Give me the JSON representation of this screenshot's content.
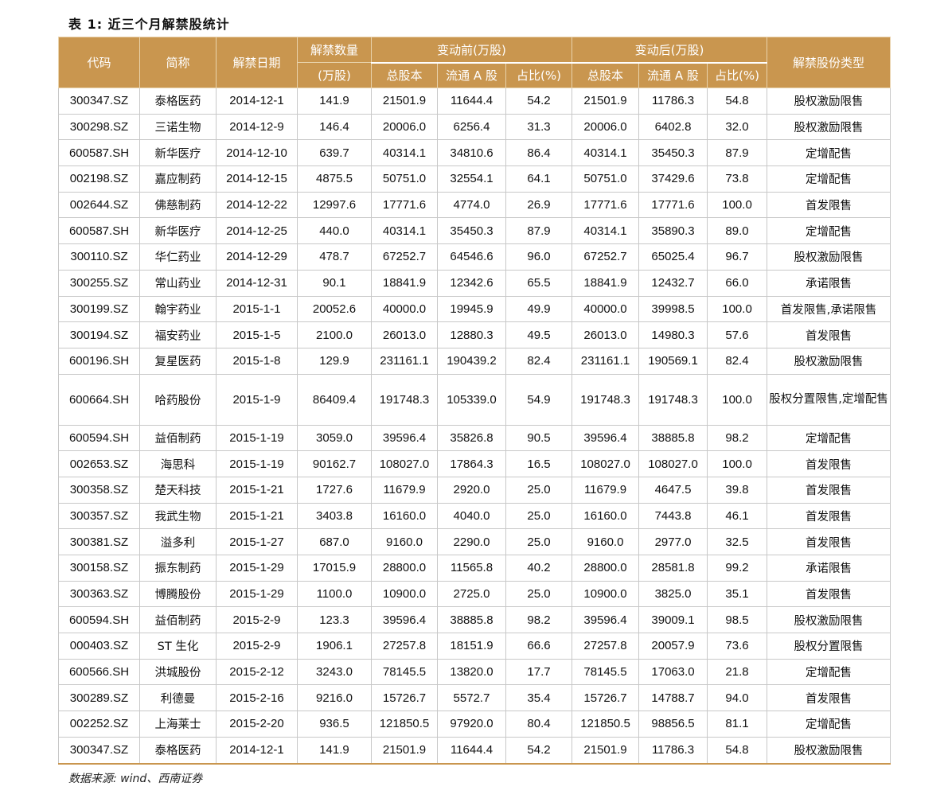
{
  "title": "表 1:  近三个月解禁股统计",
  "headers": {
    "code": "代码",
    "name": "简称",
    "date": "解禁日期",
    "amount_line1": "解禁数量",
    "amount_line2": "(万股)",
    "before": "变动前(万股)",
    "after": "变动后(万股)",
    "total": "总股本",
    "float": "流通 A 股",
    "ratio": "占比(%)",
    "type": "解禁股份类型"
  },
  "rows": [
    {
      "code": "300347.SZ",
      "name": "泰格医药",
      "date": "2014-12-1",
      "amount": "141.9",
      "b_total": "21501.9",
      "b_float": "11644.4",
      "b_ratio": "54.2",
      "a_total": "21501.9",
      "a_float": "11786.3",
      "a_ratio": "54.8",
      "type": "股权激励限售"
    },
    {
      "code": "300298.SZ",
      "name": "三诺生物",
      "date": "2014-12-9",
      "amount": "146.4",
      "b_total": "20006.0",
      "b_float": "6256.4",
      "b_ratio": "31.3",
      "a_total": "20006.0",
      "a_float": "6402.8",
      "a_ratio": "32.0",
      "type": "股权激励限售"
    },
    {
      "code": "600587.SH",
      "name": "新华医疗",
      "date": "2014-12-10",
      "amount": "639.7",
      "b_total": "40314.1",
      "b_float": "34810.6",
      "b_ratio": "86.4",
      "a_total": "40314.1",
      "a_float": "35450.3",
      "a_ratio": "87.9",
      "type": "定增配售"
    },
    {
      "code": "002198.SZ",
      "name": "嘉应制药",
      "date": "2014-12-15",
      "amount": "4875.5",
      "b_total": "50751.0",
      "b_float": "32554.1",
      "b_ratio": "64.1",
      "a_total": "50751.0",
      "a_float": "37429.6",
      "a_ratio": "73.8",
      "type": "定增配售"
    },
    {
      "code": "002644.SZ",
      "name": "佛慈制药",
      "date": "2014-12-22",
      "amount": "12997.6",
      "b_total": "17771.6",
      "b_float": "4774.0",
      "b_ratio": "26.9",
      "a_total": "17771.6",
      "a_float": "17771.6",
      "a_ratio": "100.0",
      "type": "首发限售"
    },
    {
      "code": "600587.SH",
      "name": "新华医疗",
      "date": "2014-12-25",
      "amount": "440.0",
      "b_total": "40314.1",
      "b_float": "35450.3",
      "b_ratio": "87.9",
      "a_total": "40314.1",
      "a_float": "35890.3",
      "a_ratio": "89.0",
      "type": "定增配售"
    },
    {
      "code": "300110.SZ",
      "name": "华仁药业",
      "date": "2014-12-29",
      "amount": "478.7",
      "b_total": "67252.7",
      "b_float": "64546.6",
      "b_ratio": "96.0",
      "a_total": "67252.7",
      "a_float": "65025.4",
      "a_ratio": "96.7",
      "type": "股权激励限售"
    },
    {
      "code": "300255.SZ",
      "name": "常山药业",
      "date": "2014-12-31",
      "amount": "90.1",
      "b_total": "18841.9",
      "b_float": "12342.6",
      "b_ratio": "65.5",
      "a_total": "18841.9",
      "a_float": "12432.7",
      "a_ratio": "66.0",
      "type": "承诺限售"
    },
    {
      "code": "300199.SZ",
      "name": "翰宇药业",
      "date": "2015-1-1",
      "amount": "20052.6",
      "b_total": "40000.0",
      "b_float": "19945.9",
      "b_ratio": "49.9",
      "a_total": "40000.0",
      "a_float": "39998.5",
      "a_ratio": "100.0",
      "type": "首发限售,承诺限售"
    },
    {
      "code": "300194.SZ",
      "name": "福安药业",
      "date": "2015-1-5",
      "amount": "2100.0",
      "b_total": "26013.0",
      "b_float": "12880.3",
      "b_ratio": "49.5",
      "a_total": "26013.0",
      "a_float": "14980.3",
      "a_ratio": "57.6",
      "type": "首发限售"
    },
    {
      "code": "600196.SH",
      "name": "复星医药",
      "date": "2015-1-8",
      "amount": "129.9",
      "b_total": "231161.1",
      "b_float": "190439.2",
      "b_ratio": "82.4",
      "a_total": "231161.1",
      "a_float": "190569.1",
      "a_ratio": "82.4",
      "type": "股权激励限售"
    },
    {
      "code": "600664.SH",
      "name": "哈药股份",
      "date": "2015-1-9",
      "amount": "86409.4",
      "b_total": "191748.3",
      "b_float": "105339.0",
      "b_ratio": "54.9",
      "a_total": "191748.3",
      "a_float": "191748.3",
      "a_ratio": "100.0",
      "type": "股权分置限售,定增配售"
    },
    {
      "code": "600594.SH",
      "name": "益佰制药",
      "date": "2015-1-19",
      "amount": "3059.0",
      "b_total": "39596.4",
      "b_float": "35826.8",
      "b_ratio": "90.5",
      "a_total": "39596.4",
      "a_float": "38885.8",
      "a_ratio": "98.2",
      "type": "定增配售"
    },
    {
      "code": "002653.SZ",
      "name": "海思科",
      "date": "2015-1-19",
      "amount": "90162.7",
      "b_total": "108027.0",
      "b_float": "17864.3",
      "b_ratio": "16.5",
      "a_total": "108027.0",
      "a_float": "108027.0",
      "a_ratio": "100.0",
      "type": "首发限售"
    },
    {
      "code": "300358.SZ",
      "name": "楚天科技",
      "date": "2015-1-21",
      "amount": "1727.6",
      "b_total": "11679.9",
      "b_float": "2920.0",
      "b_ratio": "25.0",
      "a_total": "11679.9",
      "a_float": "4647.5",
      "a_ratio": "39.8",
      "type": "首发限售"
    },
    {
      "code": "300357.SZ",
      "name": "我武生物",
      "date": "2015-1-21",
      "amount": "3403.8",
      "b_total": "16160.0",
      "b_float": "4040.0",
      "b_ratio": "25.0",
      "a_total": "16160.0",
      "a_float": "7443.8",
      "a_ratio": "46.1",
      "type": "首发限售"
    },
    {
      "code": "300381.SZ",
      "name": "溢多利",
      "date": "2015-1-27",
      "amount": "687.0",
      "b_total": "9160.0",
      "b_float": "2290.0",
      "b_ratio": "25.0",
      "a_total": "9160.0",
      "a_float": "2977.0",
      "a_ratio": "32.5",
      "type": "首发限售"
    },
    {
      "code": "300158.SZ",
      "name": "振东制药",
      "date": "2015-1-29",
      "amount": "17015.9",
      "b_total": "28800.0",
      "b_float": "11565.8",
      "b_ratio": "40.2",
      "a_total": "28800.0",
      "a_float": "28581.8",
      "a_ratio": "99.2",
      "type": "承诺限售"
    },
    {
      "code": "300363.SZ",
      "name": "博腾股份",
      "date": "2015-1-29",
      "amount": "1100.0",
      "b_total": "10900.0",
      "b_float": "2725.0",
      "b_ratio": "25.0",
      "a_total": "10900.0",
      "a_float": "3825.0",
      "a_ratio": "35.1",
      "type": "首发限售"
    },
    {
      "code": "600594.SH",
      "name": "益佰制药",
      "date": "2015-2-9",
      "amount": "123.3",
      "b_total": "39596.4",
      "b_float": "38885.8",
      "b_ratio": "98.2",
      "a_total": "39596.4",
      "a_float": "39009.1",
      "a_ratio": "98.5",
      "type": "股权激励限售"
    },
    {
      "code": "000403.SZ",
      "name": "ST 生化",
      "date": "2015-2-9",
      "amount": "1906.1",
      "b_total": "27257.8",
      "b_float": "18151.9",
      "b_ratio": "66.6",
      "a_total": "27257.8",
      "a_float": "20057.9",
      "a_ratio": "73.6",
      "type": "股权分置限售"
    },
    {
      "code": "600566.SH",
      "name": "洪城股份",
      "date": "2015-2-12",
      "amount": "3243.0",
      "b_total": "78145.5",
      "b_float": "13820.0",
      "b_ratio": "17.7",
      "a_total": "78145.5",
      "a_float": "17063.0",
      "a_ratio": "21.8",
      "type": "定增配售"
    },
    {
      "code": "300289.SZ",
      "name": "利德曼",
      "date": "2015-2-16",
      "amount": "9216.0",
      "b_total": "15726.7",
      "b_float": "5572.7",
      "b_ratio": "35.4",
      "a_total": "15726.7",
      "a_float": "14788.7",
      "a_ratio": "94.0",
      "type": "首发限售"
    },
    {
      "code": "002252.SZ",
      "name": "上海莱士",
      "date": "2015-2-20",
      "amount": "936.5",
      "b_total": "121850.5",
      "b_float": "97920.0",
      "b_ratio": "80.4",
      "a_total": "121850.5",
      "a_float": "98856.5",
      "a_ratio": "81.1",
      "type": "定增配售"
    },
    {
      "code": "300347.SZ",
      "name": "泰格医药",
      "date": "2014-12-1",
      "amount": "141.9",
      "b_total": "21501.9",
      "b_float": "11644.4",
      "b_ratio": "54.2",
      "a_total": "21501.9",
      "a_float": "11786.3",
      "a_ratio": "54.8",
      "type": "股权激励限售"
    }
  ],
  "source": "数据来源:  wind、西南证券",
  "colors": {
    "header_bg": "#c9964f",
    "header_text": "#ffffff",
    "grid": "#c8c8c8"
  }
}
